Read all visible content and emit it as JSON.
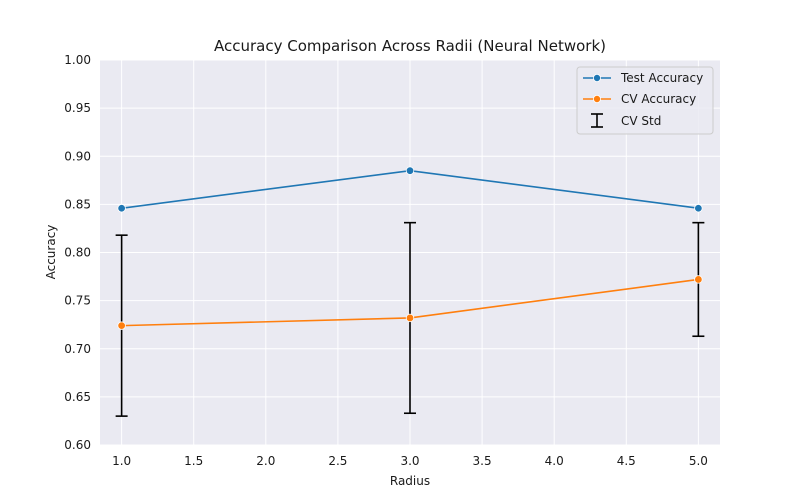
{
  "chart_data": {
    "type": "line",
    "title": "Accuracy Comparison Across Radii (Neural Network)",
    "xlabel": "Radius",
    "ylabel": "Accuracy",
    "xlim": [
      0.85,
      5.15
    ],
    "ylim": [
      0.6,
      1.0
    ],
    "x_ticks": [
      1.0,
      1.5,
      2.0,
      2.5,
      3.0,
      3.5,
      4.0,
      4.5,
      5.0
    ],
    "x_tick_labels": [
      "1.0",
      "1.5",
      "2.0",
      "2.5",
      "3.0",
      "3.5",
      "4.0",
      "4.5",
      "5.0"
    ],
    "y_ticks": [
      0.6,
      0.65,
      0.7,
      0.75,
      0.8,
      0.85,
      0.9,
      0.95,
      1.0
    ],
    "y_tick_labels": [
      "0.60",
      "0.65",
      "0.70",
      "0.75",
      "0.80",
      "0.85",
      "0.90",
      "0.95",
      "1.00"
    ],
    "grid": true,
    "legend_position": "top-right",
    "x": [
      1.0,
      3.0,
      5.0
    ],
    "series": [
      {
        "name": "Test Accuracy",
        "color": "#1f77b4",
        "values": [
          0.846,
          0.885,
          0.846
        ]
      },
      {
        "name": "CV Accuracy",
        "color": "#ff7f0e",
        "values": [
          0.724,
          0.732,
          0.772
        ],
        "error": [
          0.094,
          0.099,
          0.059
        ]
      }
    ],
    "error_legend_label": "CV Std",
    "error_color": "#000000"
  }
}
